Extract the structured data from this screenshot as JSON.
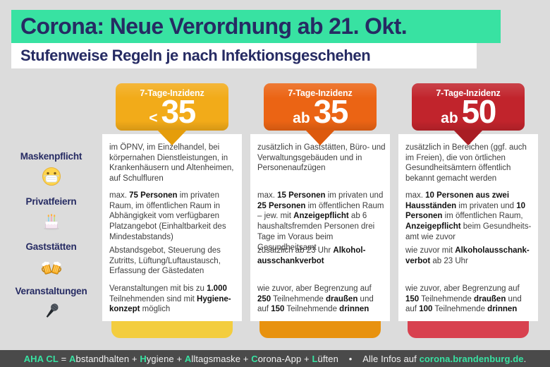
{
  "title_banner": {
    "text": "Corona: Neue Verordnung ab 21. Okt."
  },
  "subtitle": {
    "text": "Stufenweise Regeln je nach Infektionsgeschehen"
  },
  "colors": {
    "background": "#dcdcdc",
    "accent_green": "#38e2a2",
    "navy": "#262b63",
    "footer_bar": "#4a4a4a",
    "level1": "#f2ab19",
    "level2": "#eb6414",
    "level3": "#c1242c"
  },
  "rows": [
    {
      "label": "Maskenpflicht",
      "icon": "face-mask-icon"
    },
    {
      "label": "Privatfeiern",
      "icon": "birthday-cake-icon"
    },
    {
      "label": "Gaststätten",
      "icon": "beer-mugs-icon"
    },
    {
      "label": "Veranstaltungen",
      "icon": "microphone-icon"
    }
  ],
  "columns": [
    {
      "header_label": "7-Tage-Inzidenz",
      "prefix": "<",
      "value": "35",
      "color": "#f2ab19",
      "pointer_color": "#e59d0b",
      "strip_color": "#f3cd3f",
      "cells": [
        [
          {
            "t": "im ÖPNV, im Einzelhandel, bei körpernahen Dienstleistungen, in Krankenhäusern und Altenheimen, auf Schulfluren"
          }
        ],
        [
          {
            "t": "max. "
          },
          {
            "t": "75 Personen",
            "b": 1
          },
          {
            "t": " im privaten Raum, im öffentlichen Raum in Abhängigkeit vom verfügbaren Platzangebot (Einhaltbarkeit des Mindestabstands)"
          }
        ],
        [
          {
            "t": "Abstandsgebot, Steuerung des Zutritts, Lüftung/Luftaustausch, Erfassung der Gästedaten"
          }
        ],
        [
          {
            "t": "Veranstaltungen mit bis zu "
          },
          {
            "t": "1.000",
            "b": 1
          },
          {
            "t": " Teilnehmenden sind mit "
          },
          {
            "t": "Hygiene­konzept",
            "b": 1
          },
          {
            "t": " möglich"
          }
        ]
      ]
    },
    {
      "header_label": "7-Tage-Inzidenz",
      "prefix": "ab",
      "value": "35",
      "color": "#eb6414",
      "pointer_color": "#dd5a0e",
      "strip_color": "#e8920f",
      "cells": [
        [
          {
            "t": "zusätzlich in Gaststätten, Büro- und Verwaltungsgebäuden und in Personenaufzügen"
          }
        ],
        [
          {
            "t": "max. "
          },
          {
            "t": "15 Personen",
            "b": 1
          },
          {
            "t": " im privaten und "
          },
          {
            "t": "25 Personen",
            "b": 1
          },
          {
            "t": " im öffentlichen Raum – jew. mit "
          },
          {
            "t": "Anzeigepflicht",
            "b": 1
          },
          {
            "t": " ab 6 haus­haltsfremden Personen drei Tage im Voraus beim Gesundheitsamt"
          }
        ],
        [
          {
            "t": "zusätzlich ab 23 Uhr "
          },
          {
            "t": "Alkohol­ausschankverbot",
            "b": 1
          }
        ],
        [
          {
            "t": "wie zuvor, aber Begrenzung auf "
          },
          {
            "t": "250",
            "b": 1
          },
          {
            "t": " Teilnehmende "
          },
          {
            "t": "draußen",
            "b": 1
          },
          {
            "t": " und auf "
          },
          {
            "t": "150",
            "b": 1
          },
          {
            "t": " Teilnehmende "
          },
          {
            "t": "drinnen",
            "b": 1
          }
        ]
      ]
    },
    {
      "header_label": "7-Tage-Inzidenz",
      "prefix": "ab",
      "value": "50",
      "color": "#c1242c",
      "pointer_color": "#a91d24",
      "strip_color": "#d8414f",
      "cells": [
        [
          {
            "t": "zusätzlich in Bereichen (ggf. auch im Freien), die von örtlichen Gesund­heitsämtern öffentlich bekannt gemacht werden"
          }
        ],
        [
          {
            "t": "max. "
          },
          {
            "t": "10 Personen aus zwei Haus­ständen",
            "b": 1
          },
          {
            "t": " im privaten und "
          },
          {
            "t": "10 Per­sonen",
            "b": 1
          },
          {
            "t": " im öffentlichen Raum, "
          },
          {
            "t": "Anzeigepflicht",
            "b": 1
          },
          {
            "t": " beim Gesundheits­amt wie zuvor"
          }
        ],
        [
          {
            "t": "wie zuvor mit "
          },
          {
            "t": "Alkoholausschank­verbot",
            "b": 1
          },
          {
            "t": " ab 23 Uhr"
          }
        ],
        [
          {
            "t": "wie zuvor, aber Begrenzung auf "
          },
          {
            "t": "150",
            "b": 1
          },
          {
            "t": " Teilnehmende "
          },
          {
            "t": "draußen",
            "b": 1
          },
          {
            "t": " und auf "
          },
          {
            "t": "100",
            "b": 1
          },
          {
            "t": " Teilnehmende "
          },
          {
            "t": "drinnen",
            "b": 1
          }
        ]
      ]
    }
  ],
  "footer": {
    "segments": [
      {
        "t": "AHA CL",
        "g": 1,
        "b": 1
      },
      {
        "t": " = "
      },
      {
        "t": "A",
        "g": 1,
        "b": 1
      },
      {
        "t": "bstandhalten + "
      },
      {
        "t": "H",
        "g": 1,
        "b": 1
      },
      {
        "t": "ygiene + "
      },
      {
        "t": "A",
        "g": 1,
        "b": 1
      },
      {
        "t": "lltagsmaske + "
      },
      {
        "t": "C",
        "g": 1,
        "b": 1
      },
      {
        "t": "orona-App + "
      },
      {
        "t": "L",
        "g": 1,
        "b": 1
      },
      {
        "t": "üften"
      },
      {
        "t": "    •    "
      },
      {
        "t": "Alle Infos auf "
      },
      {
        "t": "corona.brandenburg.de",
        "g": 1,
        "b": 1
      },
      {
        "t": "."
      }
    ]
  }
}
